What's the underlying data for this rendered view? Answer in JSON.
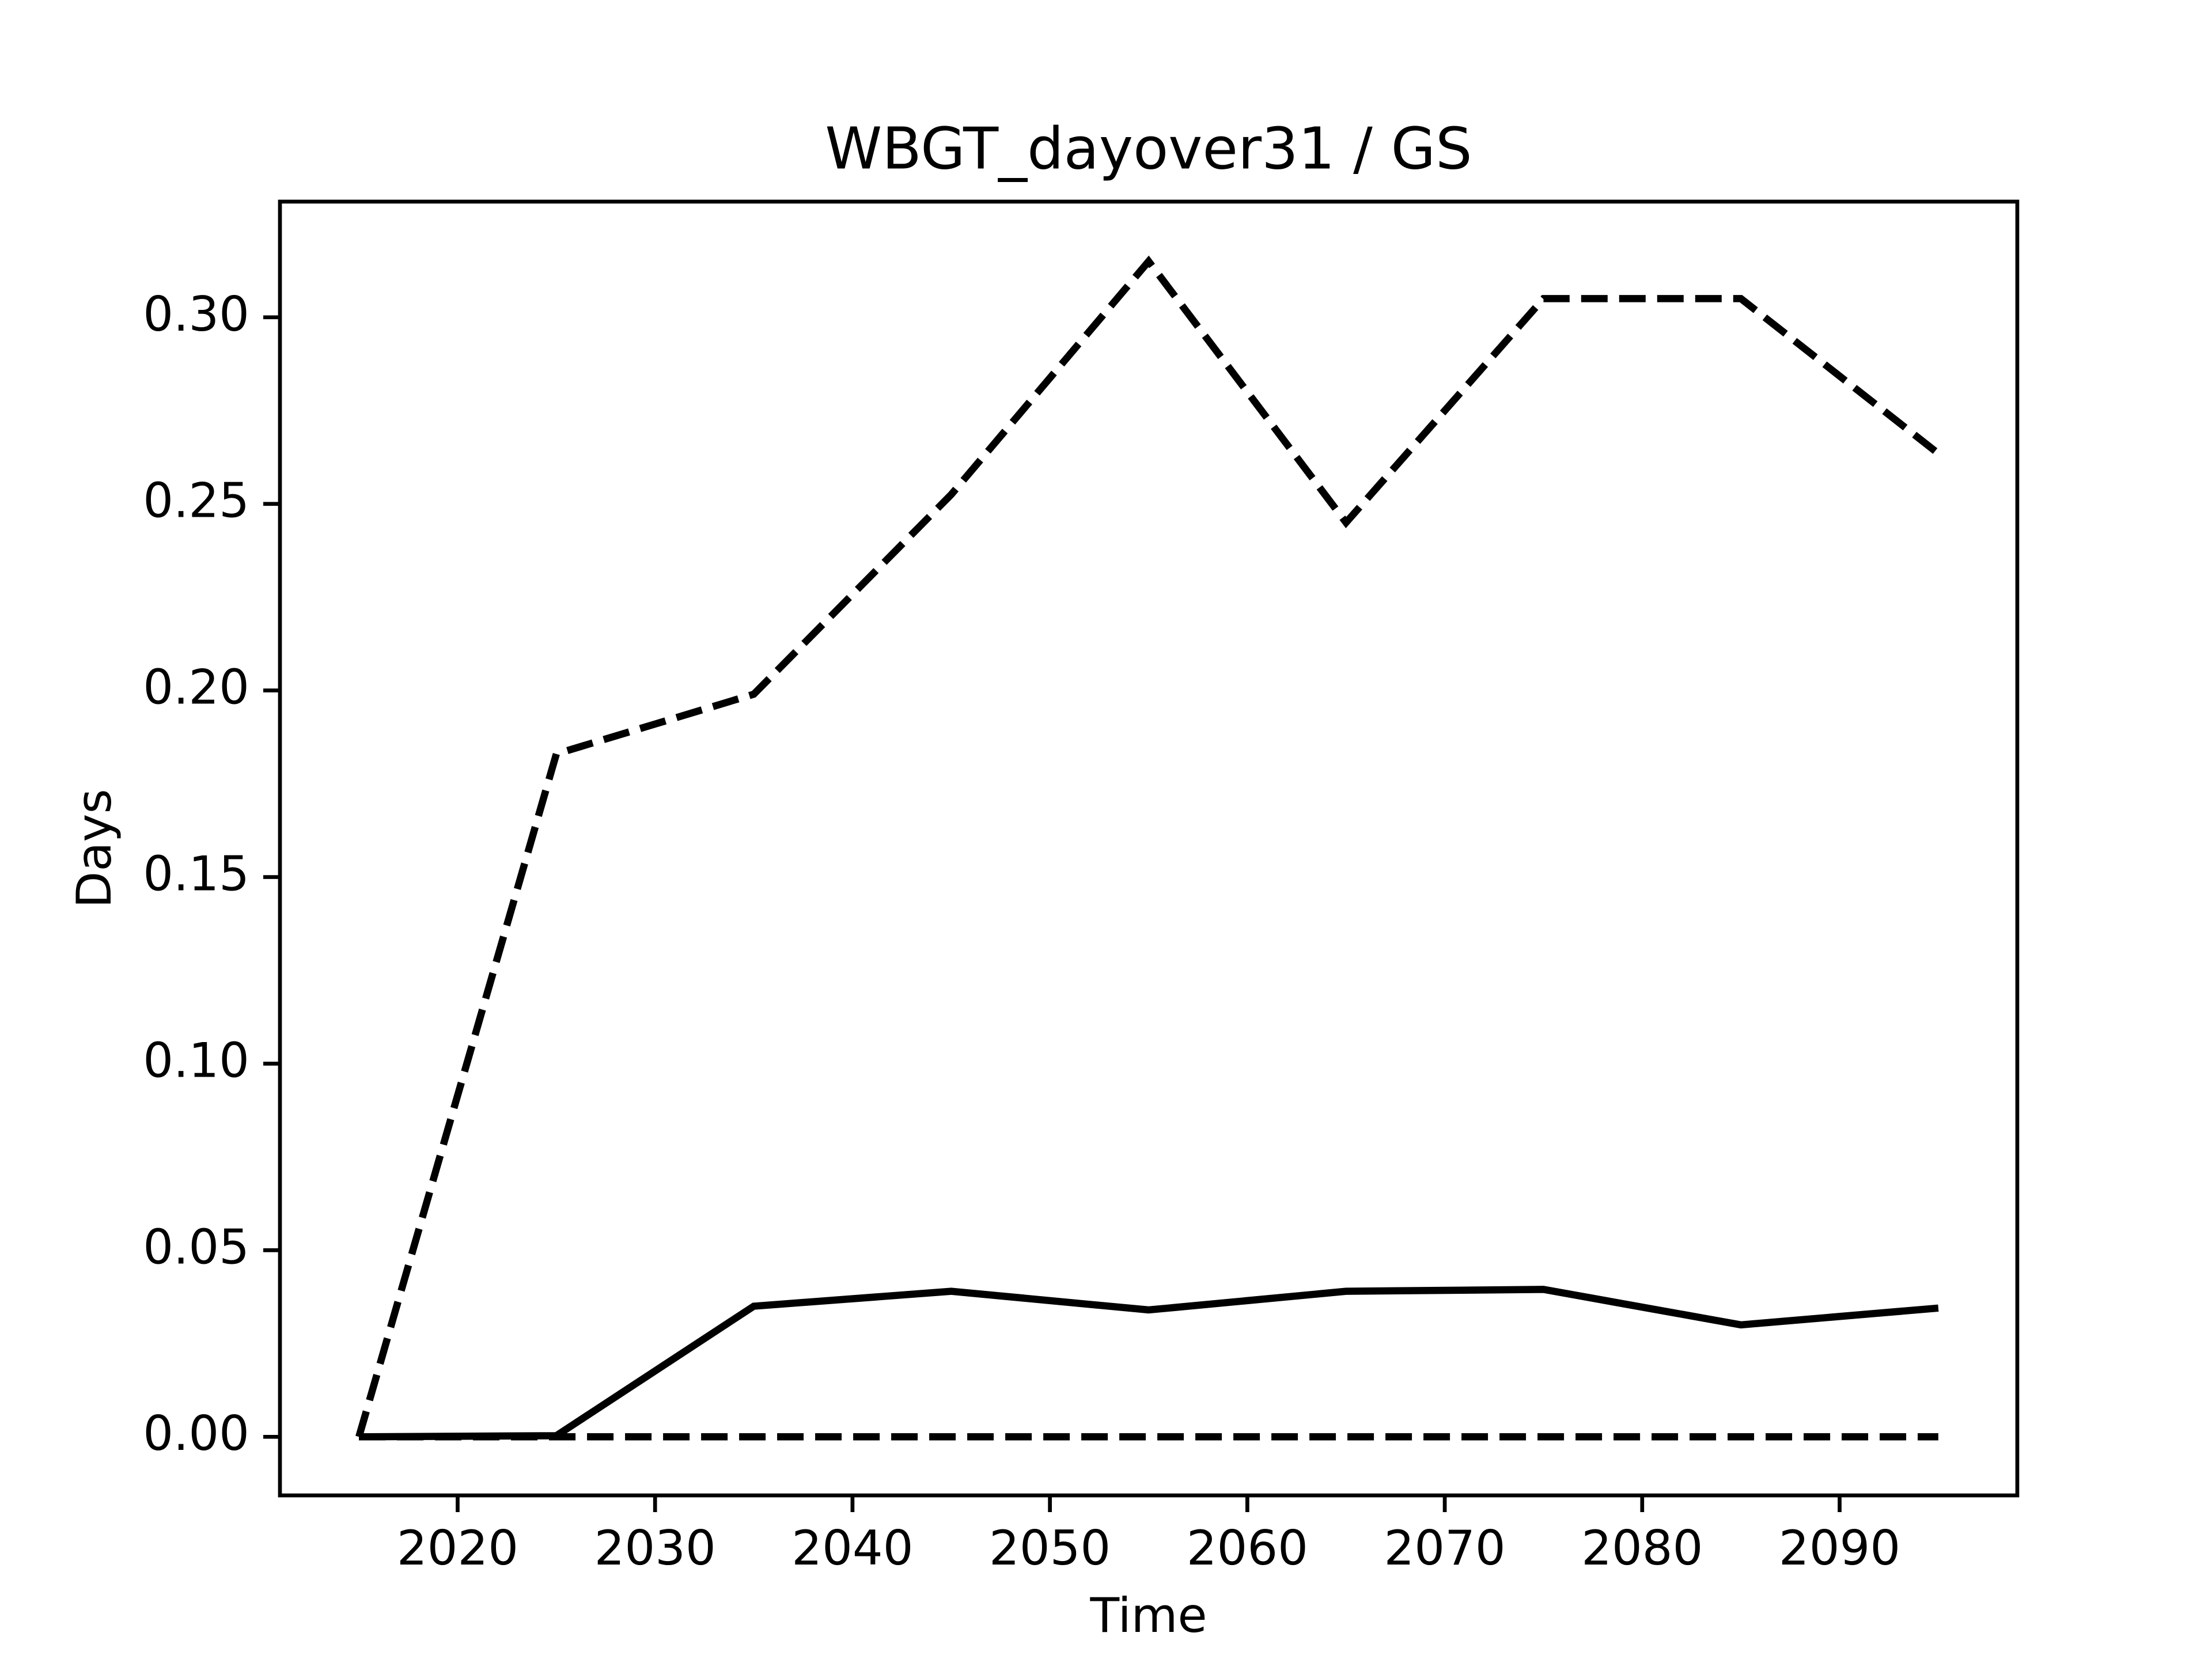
{
  "chart_data": {
    "type": "line",
    "title": "WBGT_dayover31 / GS",
    "x_label": "Time",
    "y_label": "Days",
    "x": [
      2015,
      2025,
      2035,
      2045,
      2055,
      2065,
      2075,
      2085,
      2095
    ],
    "series": [
      {
        "color": "#000000",
        "dash": false,
        "values": [
          0,
          0.0003,
          0.035,
          0.039,
          0.034,
          0.039,
          0.0395,
          0.03,
          0.0345
        ]
      },
      {
        "color": "#000000",
        "dash": true,
        "values": [
          0,
          0.183,
          0.199,
          0.2525,
          0.315,
          0.245,
          0.305,
          0.305,
          0.2635
        ]
      },
      {
        "color": "#000000",
        "dash": true,
        "values": [
          0,
          0,
          0,
          0,
          0,
          0,
          0,
          0,
          0
        ]
      }
    ],
    "xlim": [
      2011,
      2099
    ],
    "xticks": [
      2020,
      2030,
      2040,
      2050,
      2060,
      2070,
      2080,
      2090
    ],
    "ylim": [
      -0.0157,
      0.331
    ],
    "yticks": [
      {
        "value": 0,
        "label": "0.00"
      },
      {
        "value": 0.05,
        "label": "0.05"
      },
      {
        "value": 0.1,
        "label": "0.10"
      },
      {
        "value": 0.15,
        "label": "0.15"
      },
      {
        "value": 0.2,
        "label": "0.20"
      },
      {
        "value": 0.25,
        "label": "0.25"
      },
      {
        "value": 0.3,
        "label": "0.30"
      }
    ],
    "grid": false
  }
}
